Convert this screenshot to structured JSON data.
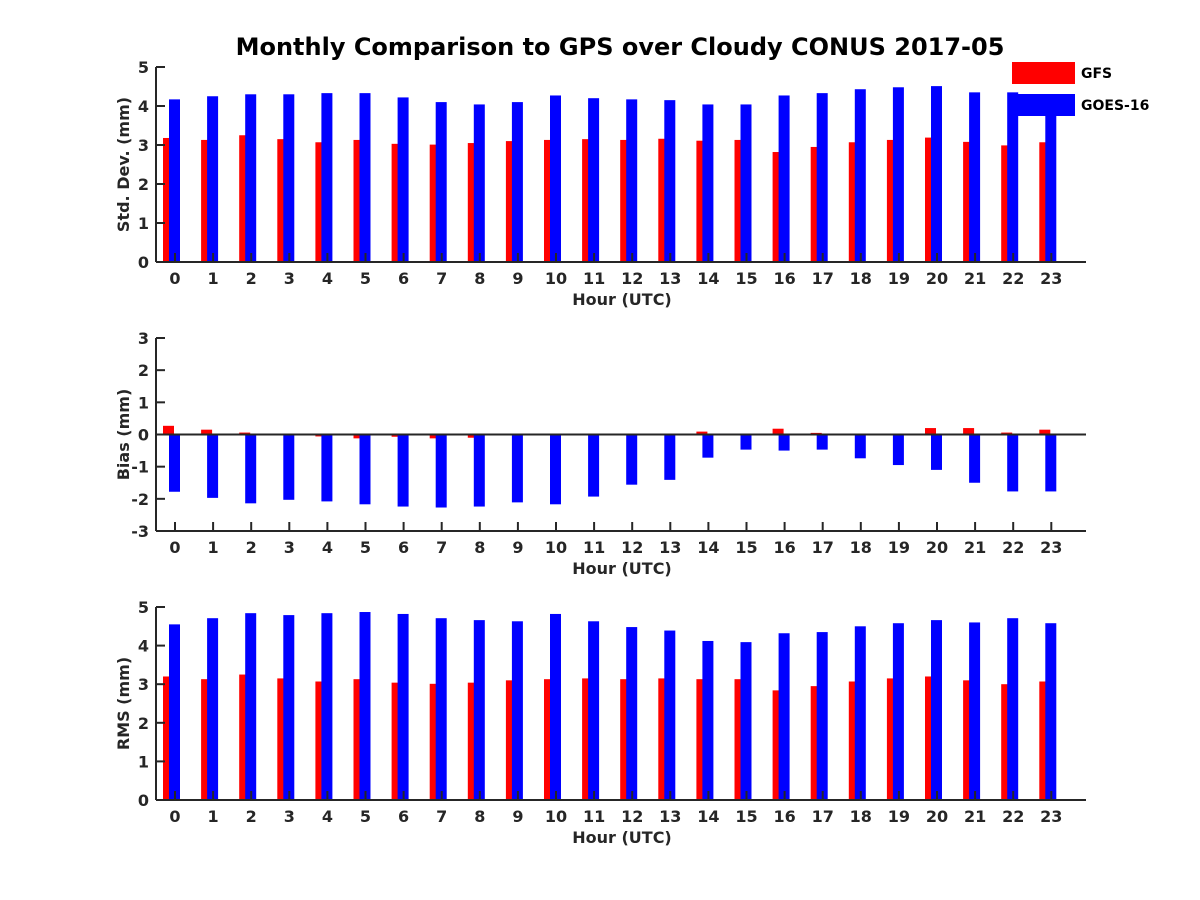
{
  "title": "Monthly Comparison to GPS over Cloudy CONUS 2017-05",
  "legend": {
    "placement": "top-right",
    "items": [
      {
        "name": "GFS",
        "color": "#ff0000"
      },
      {
        "name": "GOES-16",
        "color": "#0000ff"
      }
    ]
  },
  "chart_data": [
    {
      "type": "bar",
      "xlabel": "Hour (UTC)",
      "ylabel": "Std. Dev. (mm)",
      "ylim": [
        0,
        5
      ],
      "yticks": [
        0,
        1,
        2,
        3,
        4,
        5
      ],
      "categories": [
        "0",
        "1",
        "2",
        "3",
        "4",
        "5",
        "6",
        "7",
        "8",
        "9",
        "10",
        "11",
        "12",
        "13",
        "14",
        "15",
        "16",
        "17",
        "18",
        "19",
        "20",
        "21",
        "22",
        "23"
      ],
      "series": [
        {
          "name": "GFS",
          "color": "#ff0000",
          "values": [
            3.18,
            3.13,
            3.25,
            3.15,
            3.07,
            3.13,
            3.03,
            3.01,
            3.05,
            3.1,
            3.13,
            3.15,
            3.13,
            3.16,
            3.11,
            3.13,
            2.82,
            2.95,
            3.07,
            3.13,
            3.19,
            3.08,
            2.99,
            3.07
          ]
        },
        {
          "name": "GOES-16",
          "color": "#0000ff",
          "values": [
            4.17,
            4.25,
            4.3,
            4.3,
            4.33,
            4.33,
            4.22,
            4.1,
            4.04,
            4.1,
            4.27,
            4.2,
            4.17,
            4.15,
            4.04,
            4.04,
            4.27,
            4.33,
            4.43,
            4.48,
            4.51,
            4.35,
            4.35,
            3.85
          ]
        }
      ]
    },
    {
      "type": "bar",
      "xlabel": "Hour (UTC)",
      "ylabel": "Bias (mm)",
      "ylim": [
        -3,
        3
      ],
      "yticks": [
        -3,
        -2,
        -1,
        0,
        1,
        2,
        3
      ],
      "categories": [
        "0",
        "1",
        "2",
        "3",
        "4",
        "5",
        "6",
        "7",
        "8",
        "9",
        "10",
        "11",
        "12",
        "13",
        "14",
        "15",
        "16",
        "17",
        "18",
        "19",
        "20",
        "21",
        "22",
        "23"
      ],
      "series": [
        {
          "name": "GFS",
          "color": "#ff0000",
          "values": [
            0.27,
            0.15,
            0.06,
            0.0,
            -0.06,
            -0.12,
            -0.07,
            -0.12,
            -0.1,
            -0.02,
            -0.03,
            -0.01,
            0.03,
            -0.02,
            0.09,
            0.03,
            0.18,
            0.05,
            0.01,
            0.03,
            0.2,
            0.2,
            0.06,
            0.15
          ]
        },
        {
          "name": "GOES-16",
          "color": "#0000ff",
          "values": [
            -1.78,
            -1.97,
            -2.14,
            -2.03,
            -2.08,
            -2.17,
            -2.24,
            -2.27,
            -2.24,
            -2.11,
            -2.17,
            -1.93,
            -1.56,
            -1.41,
            -0.72,
            -0.47,
            -0.5,
            -0.47,
            -0.74,
            -0.95,
            -1.1,
            -1.5,
            -1.77,
            -1.77
          ]
        }
      ]
    },
    {
      "type": "bar",
      "xlabel": "Hour (UTC)",
      "ylabel": "RMS (mm)",
      "ylim": [
        0,
        5
      ],
      "yticks": [
        0,
        1,
        2,
        3,
        4,
        5
      ],
      "categories": [
        "0",
        "1",
        "2",
        "3",
        "4",
        "5",
        "6",
        "7",
        "8",
        "9",
        "10",
        "11",
        "12",
        "13",
        "14",
        "15",
        "16",
        "17",
        "18",
        "19",
        "20",
        "21",
        "22",
        "23"
      ],
      "series": [
        {
          "name": "GFS",
          "color": "#ff0000",
          "values": [
            3.2,
            3.13,
            3.25,
            3.15,
            3.07,
            3.13,
            3.04,
            3.01,
            3.04,
            3.1,
            3.13,
            3.15,
            3.13,
            3.15,
            3.13,
            3.13,
            2.84,
            2.95,
            3.07,
            3.15,
            3.2,
            3.1,
            3.0,
            3.07
          ]
        },
        {
          "name": "GOES-16",
          "color": "#0000ff",
          "values": [
            4.55,
            4.71,
            4.84,
            4.79,
            4.84,
            4.87,
            4.82,
            4.71,
            4.66,
            4.63,
            4.82,
            4.63,
            4.48,
            4.39,
            4.12,
            4.09,
            4.32,
            4.35,
            4.5,
            4.58,
            4.66,
            4.6,
            4.71,
            4.58
          ]
        }
      ]
    }
  ]
}
